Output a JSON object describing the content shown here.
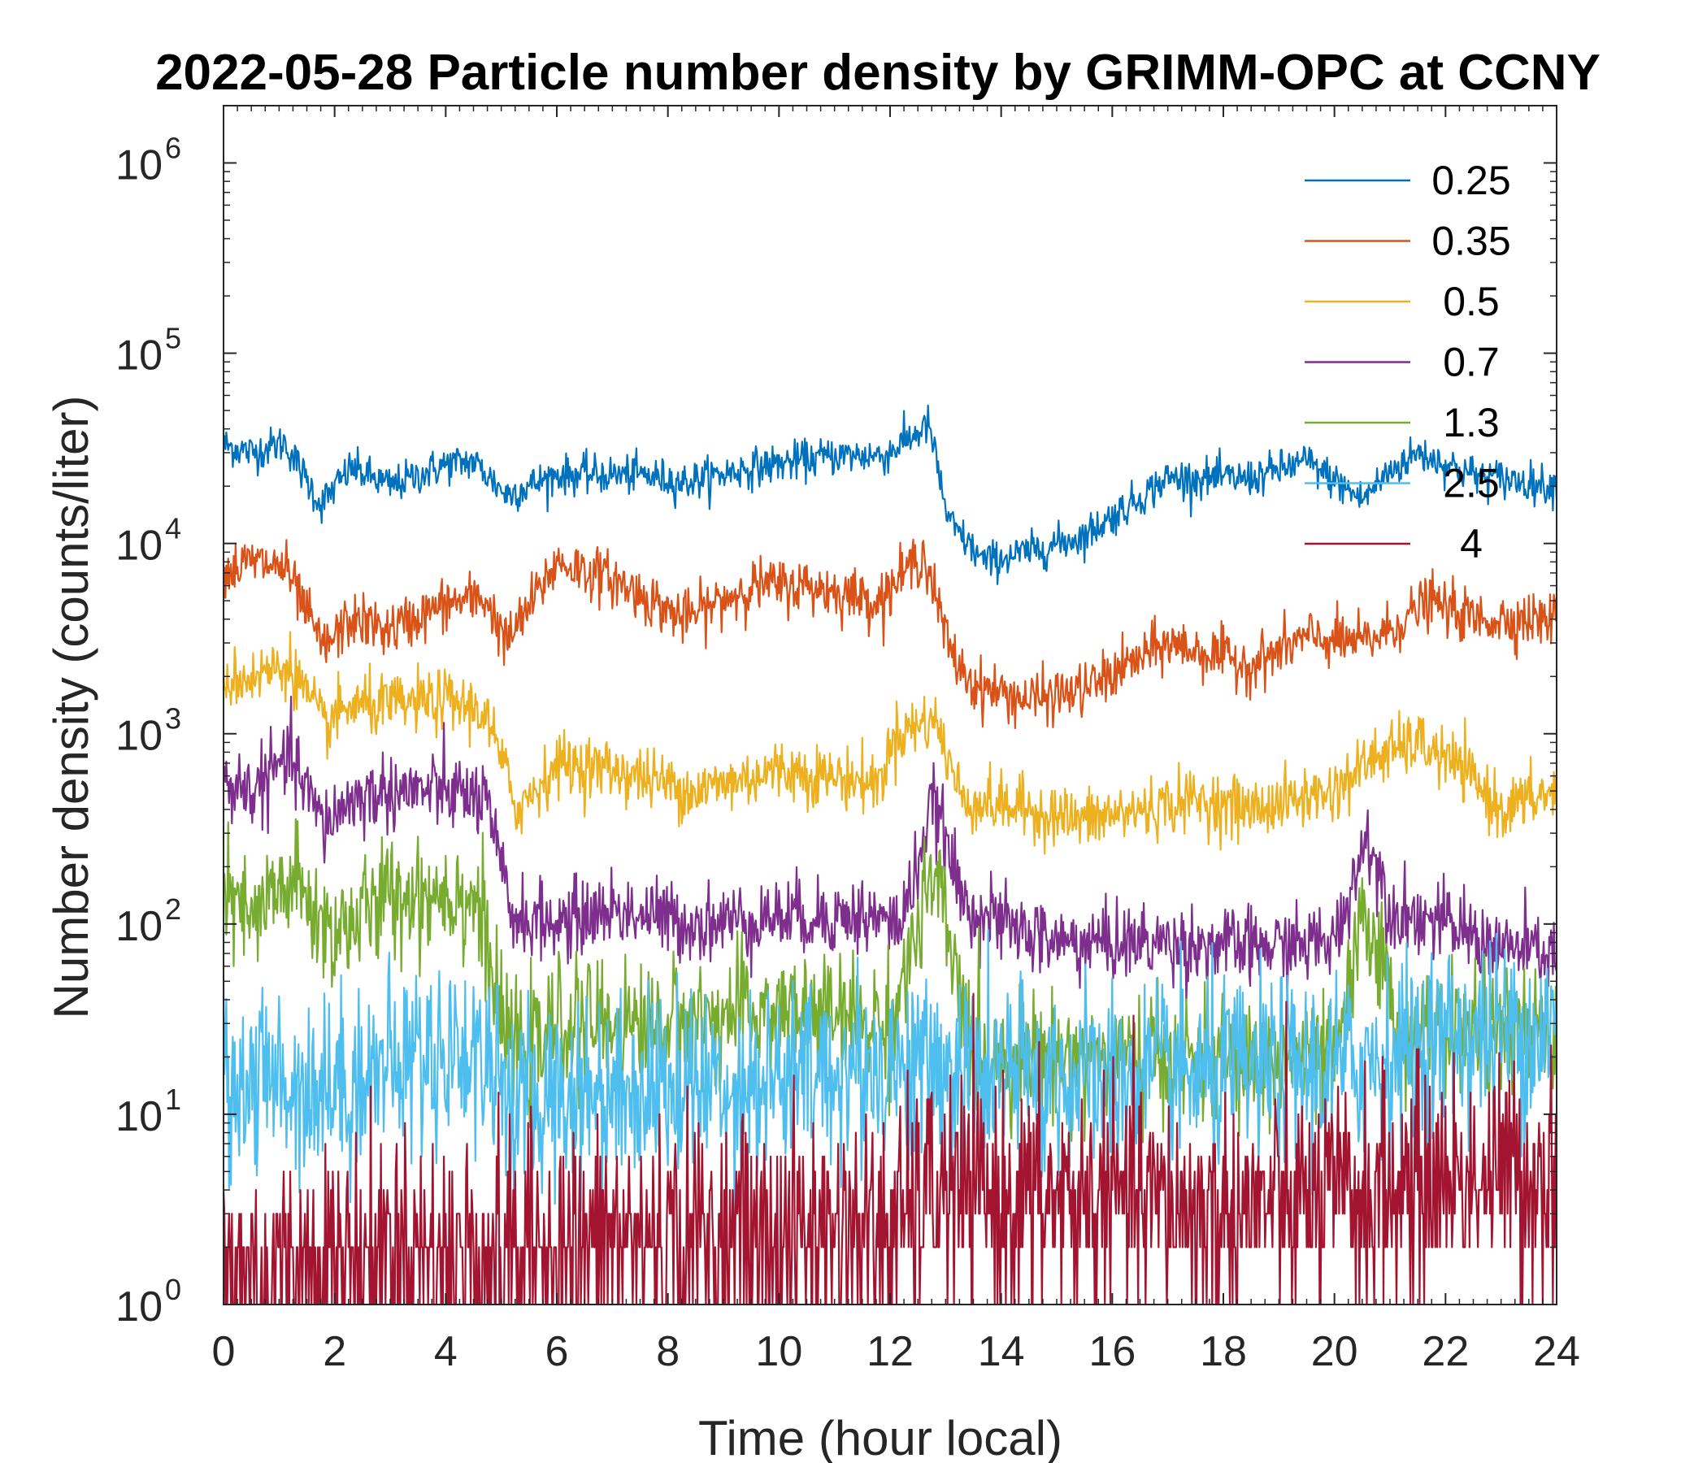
{
  "chart_data": {
    "type": "line",
    "title": "2022-05-28 Particle number density by GRIMM-OPC at CCNY",
    "xlabel": "Time (hour local)",
    "ylabel": "Number density (counts/liter)",
    "x_range": [
      0,
      24
    ],
    "y_range": [
      1,
      2000000
    ],
    "y_scale": "log",
    "x_ticks": [
      0,
      2,
      4,
      6,
      8,
      10,
      12,
      14,
      16,
      18,
      20,
      22,
      24
    ],
    "x_tick_labels": [
      "0",
      "2",
      "4",
      "6",
      "8",
      "10",
      "12",
      "14",
      "16",
      "18",
      "20",
      "22",
      "24"
    ],
    "y_ticks": [
      {
        "value": 1,
        "base": "10",
        "exp": "0"
      },
      {
        "value": 10,
        "base": "10",
        "exp": "1"
      },
      {
        "value": 100,
        "base": "10",
        "exp": "2"
      },
      {
        "value": 1000,
        "base": "10",
        "exp": "3"
      },
      {
        "value": 10000,
        "base": "10",
        "exp": "4"
      },
      {
        "value": 100000,
        "base": "10",
        "exp": "5"
      },
      {
        "value": 1000000,
        "base": "10",
        "exp": "6"
      }
    ],
    "legend_position": "top-right",
    "series": [
      {
        "name": "0.25",
        "color": "#0072BD",
        "noise": 0.05,
        "x": [
          0,
          0.5,
          1.1,
          1.75,
          2.3,
          3,
          4,
          4.5,
          5.1,
          6,
          7.5,
          8.3,
          9.5,
          11,
          11.9,
          12.7,
          13.05,
          13.7,
          14.5,
          15.5,
          17,
          18.5,
          19.5,
          20.5,
          21,
          21.5,
          22.5,
          24
        ],
        "y": [
          33000,
          30000,
          34000,
          16000,
          25000,
          20000,
          26000,
          27000,
          18000,
          23000,
          23000,
          21000,
          25000,
          29000,
          29000,
          42000,
          13000,
          8000,
          9000,
          11000,
          22000,
          22000,
          27000,
          17000,
          24000,
          30000,
          23000,
          20000
        ]
      },
      {
        "name": "0.35",
        "color": "#D95319",
        "noise": 0.07,
        "x": [
          0,
          0.5,
          1.1,
          1.8,
          2.3,
          3,
          4,
          4.7,
          5.1,
          6,
          7,
          8.3,
          9.5,
          10.5,
          11.8,
          12.6,
          13.1,
          13.5,
          14.5,
          15.5,
          17,
          18.5,
          19.5,
          20.5,
          21,
          21.7,
          22.5,
          24
        ],
        "y": [
          7000,
          8000,
          7500,
          2800,
          4000,
          3500,
          4800,
          5200,
          3000,
          8000,
          6500,
          4000,
          6000,
          6000,
          5000,
          9000,
          2600,
          1800,
          1500,
          1700,
          3000,
          2300,
          3200,
          3000,
          3500,
          5000,
          4000,
          4000
        ]
      },
      {
        "name": "0.5",
        "color": "#EDB120",
        "noise": 0.08,
        "x": [
          0,
          0.5,
          1.2,
          1.8,
          2.3,
          3,
          4,
          4.7,
          5.3,
          6,
          7,
          8.5,
          10,
          11.8,
          12.1,
          12.8,
          13.3,
          14.5,
          15.5,
          17.5,
          18.5,
          20,
          20.7,
          21.5,
          22.3,
          23,
          24
        ],
        "y": [
          1900,
          2000,
          2300,
          1100,
          1400,
          1400,
          1500,
          1300,
          400,
          700,
          650,
          500,
          650,
          550,
          1000,
          1200,
          450,
          400,
          350,
          450,
          400,
          500,
          750,
          900,
          650,
          400,
          500
        ]
      },
      {
        "name": "0.7",
        "color": "#7E2F8E",
        "noise": 0.1,
        "x": [
          0,
          0.5,
          1.2,
          1.8,
          2.3,
          3,
          4,
          4.7,
          5.2,
          6,
          7,
          8.5,
          10,
          11.5,
          12.2,
          12.8,
          13.3,
          14,
          15,
          17,
          18.5,
          20,
          20.6,
          21,
          22,
          23,
          24
        ],
        "y": [
          550,
          500,
          750,
          330,
          450,
          500,
          500,
          450,
          110,
          100,
          120,
          100,
          110,
          110,
          100,
          450,
          130,
          100,
          80,
          80,
          75,
          80,
          300,
          120,
          100,
          75,
          70
        ]
      },
      {
        "name": "1.3",
        "color": "#77AC30",
        "noise": 0.16,
        "x": [
          0,
          0.5,
          1.2,
          1.9,
          2.5,
          3,
          4,
          4.6,
          5.0,
          5.5,
          6,
          8,
          10,
          12,
          12.8,
          13.5,
          15,
          17,
          19,
          20,
          20.6,
          21.2,
          22,
          24
        ],
        "y": [
          140,
          100,
          170,
          90,
          110,
          140,
          150,
          130,
          28,
          20,
          30,
          30,
          35,
          30,
          180,
          20,
          20,
          20,
          18,
          20,
          120,
          25,
          28,
          25
        ]
      },
      {
        "name": "2.5",
        "color": "#4DBEEE",
        "noise": 0.25,
        "x": [
          0,
          1,
          2,
          3,
          4,
          4.8,
          5.3,
          6,
          8,
          10,
          12,
          14,
          16,
          18,
          20,
          22,
          24
        ],
        "y": [
          15,
          15,
          14,
          18,
          22,
          20,
          10,
          13,
          14,
          15,
          18,
          16,
          15,
          16,
          17,
          25,
          28
        ]
      },
      {
        "name": "4",
        "color": "#A2142F",
        "noise": 0.3,
        "x": [
          0,
          3,
          5,
          8,
          12,
          12.8,
          14,
          16,
          18,
          20,
          22,
          24
        ],
        "y": [
          1.5,
          2,
          2,
          2.3,
          2.5,
          4,
          3.5,
          3.5,
          3,
          3.5,
          4.5,
          5
        ]
      }
    ]
  }
}
